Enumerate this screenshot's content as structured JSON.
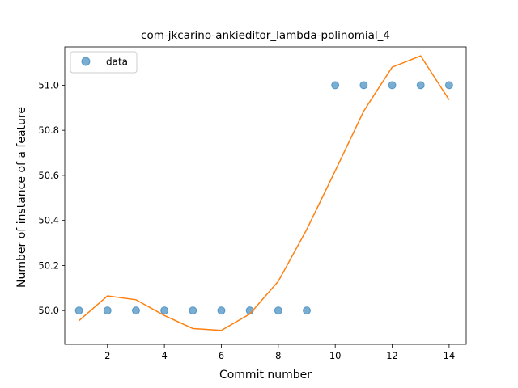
{
  "chart_data": {
    "type": "scatter",
    "title": "com-jkcarino-ankieditor_lambda-polinomial_4",
    "xlabel": "Commit number",
    "ylabel": "Number of instance of a feature",
    "xlim": [
      0.5,
      14.6
    ],
    "ylim": [
      49.85,
      51.17
    ],
    "xticks": [
      2,
      4,
      6,
      8,
      10,
      12,
      14
    ],
    "yticks": [
      50.0,
      50.2,
      50.4,
      50.6,
      50.8,
      51.0
    ],
    "ytick_labels": [
      "50.0",
      "50.2",
      "50.4",
      "50.6",
      "50.8",
      "51.0"
    ],
    "grid": false,
    "legend": {
      "placement": "top-left",
      "entries": [
        "data"
      ]
    },
    "series": [
      {
        "name": "data",
        "kind": "scatter",
        "color": "#1f77b4",
        "x": [
          1,
          2,
          3,
          4,
          5,
          6,
          7,
          8,
          9,
          10,
          11,
          12,
          13,
          14
        ],
        "y": [
          50,
          50,
          50,
          50,
          50,
          50,
          50,
          50,
          50,
          51,
          51,
          51,
          51,
          51
        ]
      },
      {
        "kind": "line",
        "color": "#ff7f0e",
        "x": [
          1,
          2,
          3,
          4,
          5,
          6,
          7,
          8,
          9,
          10,
          11,
          12,
          13,
          14
        ],
        "y": [
          49.955,
          50.065,
          50.048,
          49.978,
          49.92,
          49.912,
          49.985,
          50.13,
          50.36,
          50.62,
          50.885,
          51.08,
          51.13,
          50.935
        ]
      }
    ]
  }
}
